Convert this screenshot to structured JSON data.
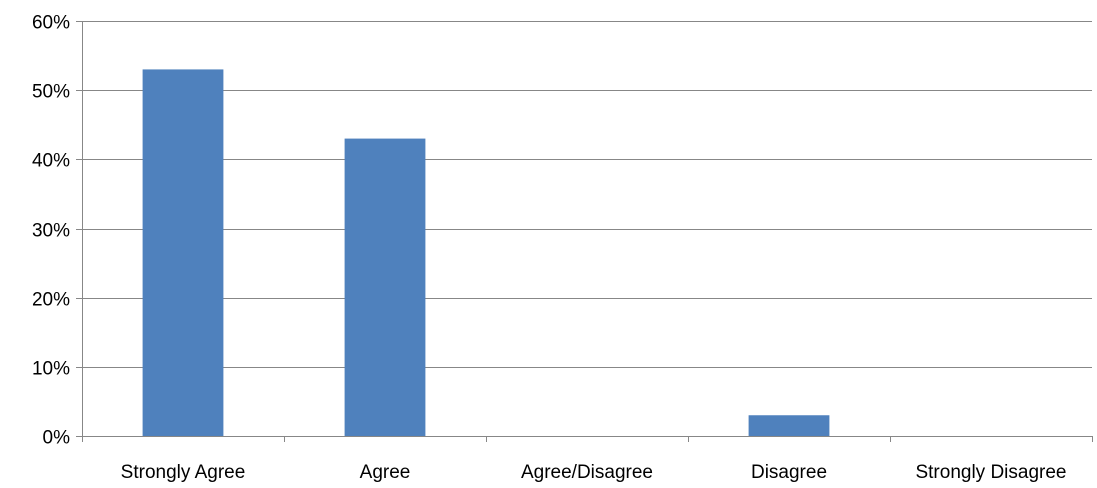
{
  "chart_data": {
    "type": "bar",
    "title": "",
    "xlabel": "",
    "ylabel": "",
    "categories": [
      "Strongly Agree",
      "Agree",
      "Agree/Disagree",
      "Disagree",
      "Strongly Disagree"
    ],
    "values": [
      0.53,
      0.43,
      0,
      0.03,
      0
    ],
    "ylim": [
      0,
      0.6
    ],
    "yticks": [
      0,
      0.1,
      0.2,
      0.3,
      0.4,
      0.5,
      0.6
    ],
    "ytick_labels": [
      "0%",
      "10%",
      "20%",
      "30%",
      "40%",
      "50%",
      "60%"
    ],
    "grid": true,
    "legend": "none",
    "bar_color": "#4F81BD",
    "grid_color": "#878787"
  }
}
